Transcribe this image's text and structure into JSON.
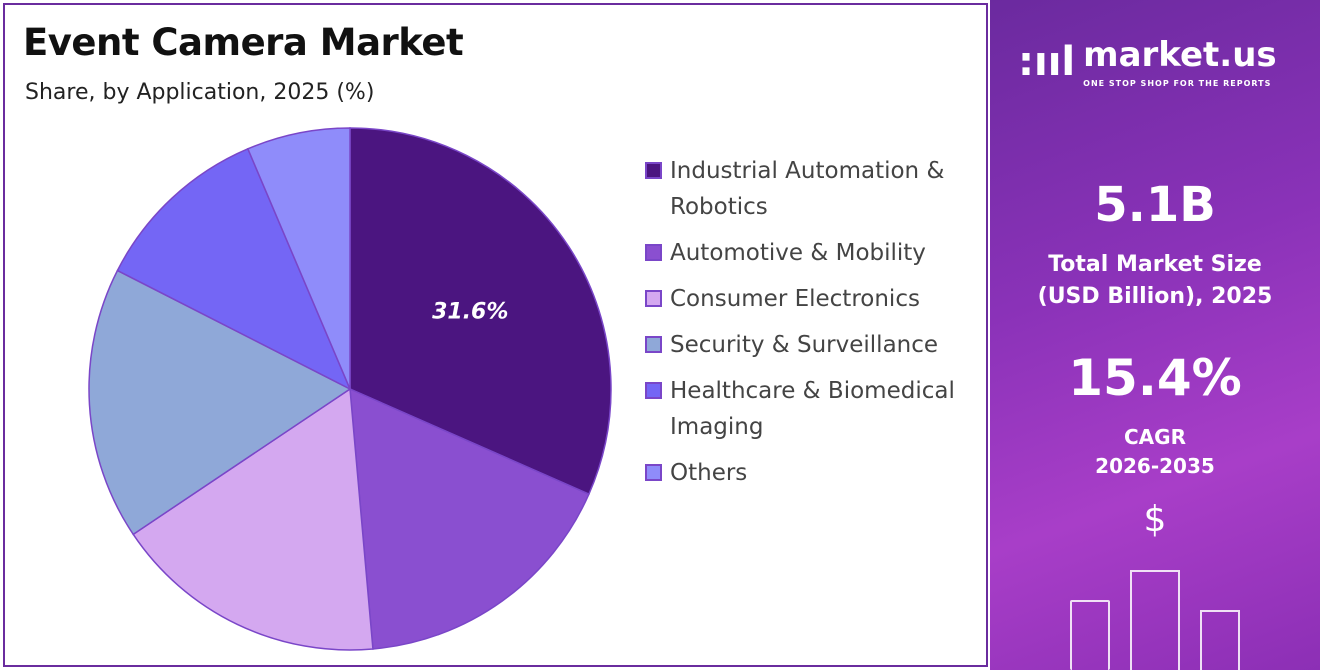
{
  "header": {
    "title": "Event Camera Market",
    "subtitle": "Share, by Application, 2025 (%)"
  },
  "chart_data": {
    "type": "pie",
    "title": "Event Camera Market",
    "subtitle": "Share, by Application, 2025 (%)",
    "categories": [
      "Industrial Automation & Robotics",
      "Automotive & Mobility",
      "Consumer Electronics",
      "Security & Surveillance",
      "Healthcare & Biomedical Imaging",
      "Others"
    ],
    "values": [
      31.6,
      17.0,
      17.0,
      16.9,
      11.1,
      6.4
    ],
    "colors": [
      "#4b1580",
      "#8a4fd0",
      "#d4a8f0",
      "#8fa8d8",
      "#7466f5",
      "#8f8cfa"
    ],
    "data_labels": [
      "31.6%",
      "",
      "",
      "",
      "",
      ""
    ],
    "legend_position": "right",
    "start_angle": "top, clockwise"
  },
  "sidebar": {
    "brand": "market.us",
    "tagline": "ONE STOP SHOP FOR THE REPORTS",
    "market_size": "5.1B",
    "market_size_label_1": "Total Market Size",
    "market_size_label_2": "(USD Billion), 2025",
    "cagr": "15.4%",
    "cagr_label_1": "CAGR",
    "cagr_label_2": "2026-2035",
    "currency_symbol": "$"
  }
}
